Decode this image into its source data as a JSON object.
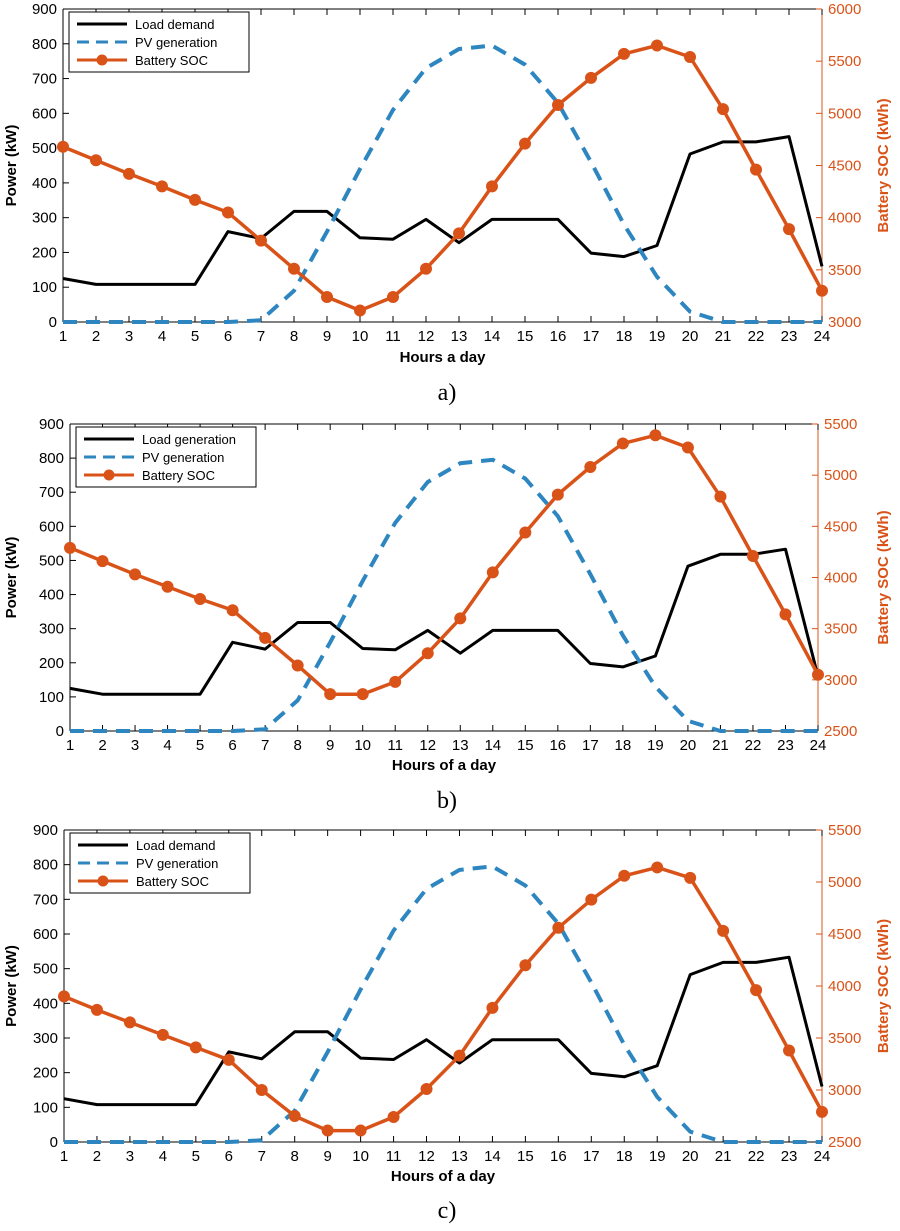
{
  "colors": {
    "load": "#000000",
    "pv": "#2E86C1",
    "soc": "#D95319",
    "axis": "#000000"
  },
  "chart_data": [
    {
      "type": "line",
      "caption": "a)",
      "xlabel": "Hours a day",
      "ylabel": "Power (kW)",
      "ylabel_right": "Battery SOC (kWh)",
      "x": [
        1,
        2,
        3,
        4,
        5,
        6,
        7,
        8,
        9,
        10,
        11,
        12,
        13,
        14,
        15,
        16,
        17,
        18,
        19,
        20,
        21,
        22,
        23,
        24
      ],
      "xlim": [
        1,
        24
      ],
      "ylim": [
        0,
        900
      ],
      "yticks": [
        0,
        100,
        200,
        300,
        400,
        500,
        600,
        700,
        800,
        900
      ],
      "ylim_right": [
        3000,
        6000
      ],
      "yticks_right": [
        3000,
        3500,
        4000,
        4500,
        5000,
        5500,
        6000
      ],
      "legend_position": "top-left",
      "series": [
        {
          "name": "Load demand",
          "axis": "left",
          "style": "solid",
          "values": [
            125,
            108,
            108,
            108,
            108,
            260,
            240,
            318,
            318,
            242,
            238,
            295,
            228,
            295,
            295,
            295,
            198,
            188,
            220,
            483,
            518,
            518,
            533,
            160
          ]
        },
        {
          "name": "PV generation",
          "axis": "left",
          "style": "dashed",
          "values": [
            0,
            0,
            0,
            0,
            0,
            0,
            5,
            90,
            260,
            440,
            610,
            730,
            785,
            795,
            740,
            630,
            460,
            280,
            130,
            30,
            0,
            0,
            0,
            0
          ]
        },
        {
          "name": "Battery SOC",
          "axis": "right",
          "style": "marker",
          "values": [
            4680,
            4550,
            4420,
            4300,
            4170,
            4050,
            3780,
            3510,
            3240,
            3110,
            3240,
            3510,
            3850,
            4300,
            4710,
            5080,
            5340,
            5570,
            5650,
            5540,
            5040,
            4460,
            3890,
            3300
          ]
        }
      ]
    },
    {
      "type": "line",
      "caption": "b)",
      "xlabel": "Hours of a day",
      "ylabel": "Power (kW)",
      "ylabel_right": "Battery SOC (kWh)",
      "x": [
        1,
        2,
        3,
        4,
        5,
        6,
        7,
        8,
        9,
        10,
        11,
        12,
        13,
        14,
        15,
        16,
        17,
        18,
        19,
        20,
        21,
        22,
        23,
        24
      ],
      "xlim": [
        1,
        24
      ],
      "ylim": [
        0,
        900
      ],
      "yticks": [
        0,
        100,
        200,
        300,
        400,
        500,
        600,
        700,
        800,
        900
      ],
      "ylim_right": [
        2500,
        5500
      ],
      "yticks_right": [
        2500,
        3000,
        3500,
        4000,
        4500,
        5000,
        5500
      ],
      "legend_position": "top-left",
      "series": [
        {
          "name": "Load generation",
          "axis": "left",
          "style": "solid",
          "values": [
            125,
            108,
            108,
            108,
            108,
            260,
            240,
            318,
            318,
            242,
            238,
            295,
            228,
            295,
            295,
            295,
            198,
            188,
            220,
            483,
            518,
            518,
            533,
            160
          ]
        },
        {
          "name": "PV generation",
          "axis": "left",
          "style": "dashed",
          "values": [
            0,
            0,
            0,
            0,
            0,
            0,
            5,
            90,
            260,
            440,
            610,
            730,
            785,
            795,
            740,
            630,
            460,
            280,
            130,
            30,
            0,
            0,
            0,
            0
          ]
        },
        {
          "name": "Battery SOC",
          "axis": "right",
          "style": "marker",
          "values": [
            4290,
            4160,
            4030,
            3910,
            3790,
            3680,
            3410,
            3140,
            2860,
            2860,
            2980,
            3260,
            3600,
            4050,
            4440,
            4810,
            5080,
            5310,
            5390,
            5270,
            4790,
            4210,
            3640,
            3050
          ]
        }
      ]
    },
    {
      "type": "line",
      "caption": "c)",
      "xlabel": "Hours of a day",
      "ylabel": "Power (kW)",
      "ylabel_right": "Battery SOC (kWh)",
      "x": [
        1,
        2,
        3,
        4,
        5,
        6,
        7,
        8,
        9,
        10,
        11,
        12,
        13,
        14,
        15,
        16,
        17,
        18,
        19,
        20,
        21,
        22,
        23,
        24
      ],
      "xlim": [
        1,
        24
      ],
      "ylim": [
        0,
        900
      ],
      "yticks": [
        0,
        100,
        200,
        300,
        400,
        500,
        600,
        700,
        800,
        900
      ],
      "ylim_right": [
        2500,
        5500
      ],
      "yticks_right": [
        2500,
        3000,
        3500,
        4000,
        4500,
        5000,
        5500
      ],
      "legend_position": "top-left",
      "series": [
        {
          "name": "Load demand",
          "axis": "left",
          "style": "solid",
          "values": [
            125,
            108,
            108,
            108,
            108,
            260,
            240,
            318,
            318,
            242,
            238,
            295,
            228,
            295,
            295,
            295,
            198,
            188,
            220,
            483,
            518,
            518,
            533,
            160
          ]
        },
        {
          "name": "PV generation",
          "axis": "left",
          "style": "dashed",
          "values": [
            0,
            0,
            0,
            0,
            0,
            0,
            5,
            90,
            260,
            440,
            610,
            730,
            785,
            795,
            740,
            630,
            460,
            280,
            130,
            30,
            0,
            0,
            0,
            0
          ]
        },
        {
          "name": "Battery SOC",
          "axis": "right",
          "style": "marker",
          "values": [
            3900,
            3770,
            3650,
            3530,
            3410,
            3290,
            3000,
            2750,
            2610,
            2610,
            2740,
            3010,
            3330,
            3790,
            4200,
            4560,
            4830,
            5060,
            5140,
            5040,
            4530,
            3960,
            3380,
            2790
          ]
        }
      ]
    }
  ]
}
